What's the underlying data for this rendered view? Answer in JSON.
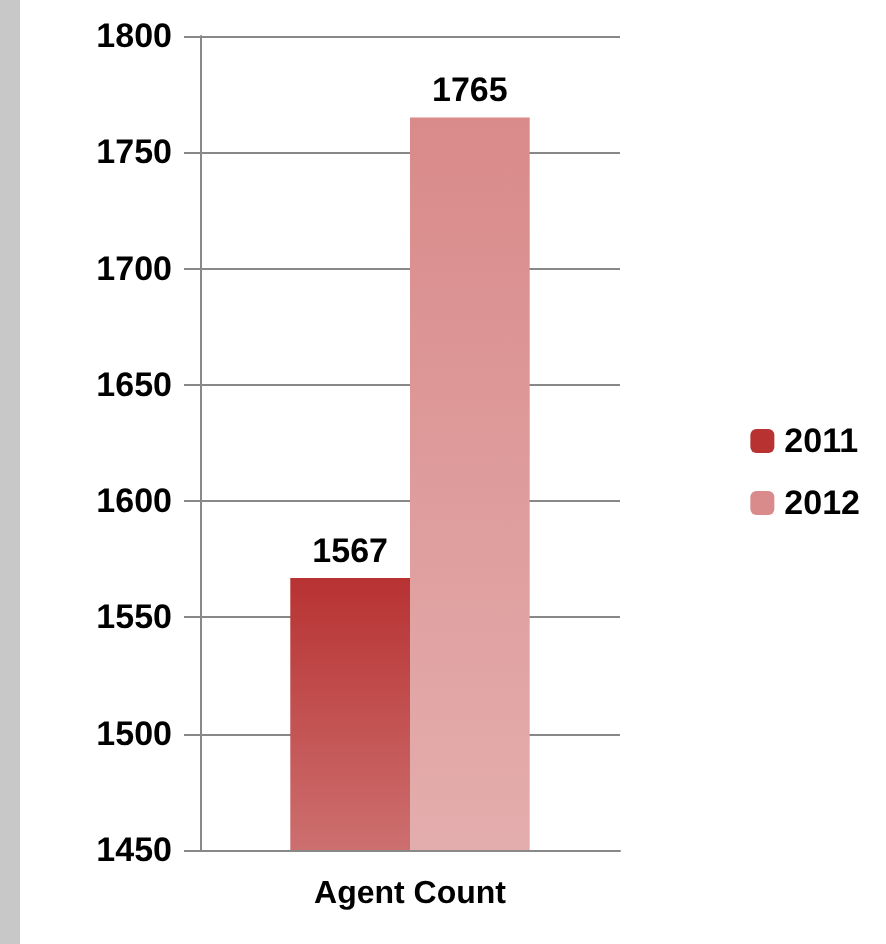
{
  "chart_data": {
    "type": "bar",
    "categories": [
      "Agent Count"
    ],
    "series": [
      {
        "name": "2011",
        "color": "#b83232",
        "values": [
          1567
        ]
      },
      {
        "name": "2012",
        "color": "#d98a8a",
        "values": [
          1765
        ]
      }
    ],
    "ylim": [
      1450,
      1800
    ],
    "yticks": [
      1450,
      1500,
      1550,
      1600,
      1650,
      1700,
      1750,
      1800
    ],
    "grid": "y",
    "legend": "right",
    "data_labels": true
  }
}
